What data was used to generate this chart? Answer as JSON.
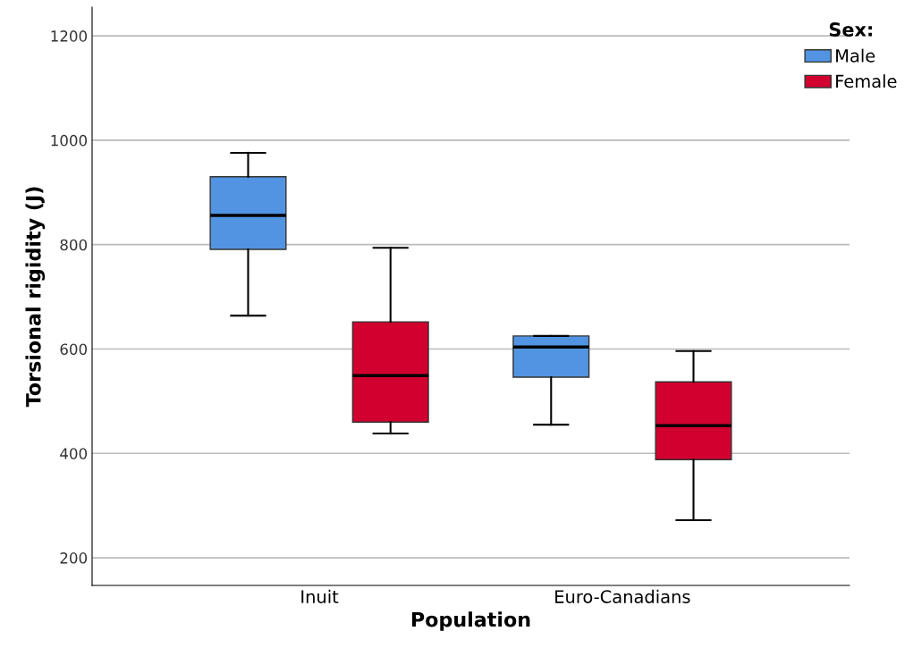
{
  "chart_data": {
    "type": "box",
    "xlabel": "Population",
    "ylabel": "Torsional rigidity (J)",
    "legend_title": "Sex:",
    "categories": [
      "Inuit",
      "Euro-Canadians"
    ],
    "series": [
      {
        "name": "Male",
        "color": "#5294e2",
        "boxes": [
          {
            "low": 664,
            "q1": 791,
            "median": 856,
            "q3": 930,
            "high": 976
          },
          {
            "low": 455,
            "q1": 546,
            "median": 604,
            "q3": 625,
            "high": 625
          }
        ]
      },
      {
        "name": "Female",
        "color": "#d2002e",
        "boxes": [
          {
            "low": 438,
            "q1": 460,
            "median": 549,
            "q3": 652,
            "high": 794
          },
          {
            "low": 272,
            "q1": 388,
            "median": 453,
            "q3": 537,
            "high": 596
          }
        ]
      }
    ],
    "ylim": [
      147,
      1255
    ],
    "yticks": [
      200,
      400,
      600,
      800,
      1000,
      1200
    ],
    "grid": "y",
    "legend": "top right"
  }
}
